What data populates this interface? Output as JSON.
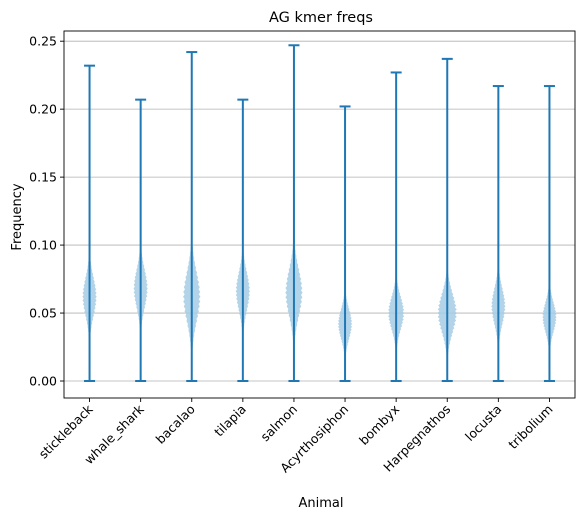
{
  "chart_data": {
    "type": "violin",
    "title": "AG kmer freqs",
    "xlabel": "Animal",
    "ylabel": "Frequency",
    "ylim": [
      -0.0125,
      0.2575
    ],
    "yticks": [
      "0.00",
      "0.05",
      "0.10",
      "0.15",
      "0.20",
      "0.25"
    ],
    "grid": "y",
    "colors": {
      "body": "#a6cce4",
      "stroke": "#1f77b4",
      "grid": "#b0b0b0"
    },
    "categories": [
      "stickleback",
      "whale_shark",
      "bacalao",
      "tilapia",
      "salmon",
      "Acyrthosiphon",
      "bombyx",
      "Harpegnathos",
      "locusta",
      "tribolium"
    ],
    "series": [
      {
        "min": 0.0,
        "max": 0.232,
        "center": 0.062,
        "spread": 0.014,
        "half_width": 0.14
      },
      {
        "min": 0.0,
        "max": 0.207,
        "center": 0.068,
        "spread": 0.014,
        "half_width": 0.14
      },
      {
        "min": 0.0,
        "max": 0.242,
        "center": 0.062,
        "spread": 0.018,
        "half_width": 0.17
      },
      {
        "min": 0.0,
        "max": 0.207,
        "center": 0.066,
        "spread": 0.014,
        "half_width": 0.14
      },
      {
        "min": 0.0,
        "max": 0.247,
        "center": 0.065,
        "spread": 0.017,
        "half_width": 0.17
      },
      {
        "min": 0.0,
        "max": 0.202,
        "center": 0.042,
        "spread": 0.011,
        "half_width": 0.14
      },
      {
        "min": 0.0,
        "max": 0.227,
        "center": 0.05,
        "spread": 0.012,
        "half_width": 0.16
      },
      {
        "min": 0.0,
        "max": 0.237,
        "center": 0.05,
        "spread": 0.014,
        "half_width": 0.19
      },
      {
        "min": 0.0,
        "max": 0.217,
        "center": 0.055,
        "spread": 0.013,
        "half_width": 0.14
      },
      {
        "min": 0.0,
        "max": 0.217,
        "center": 0.047,
        "spread": 0.011,
        "half_width": 0.14
      }
    ]
  }
}
